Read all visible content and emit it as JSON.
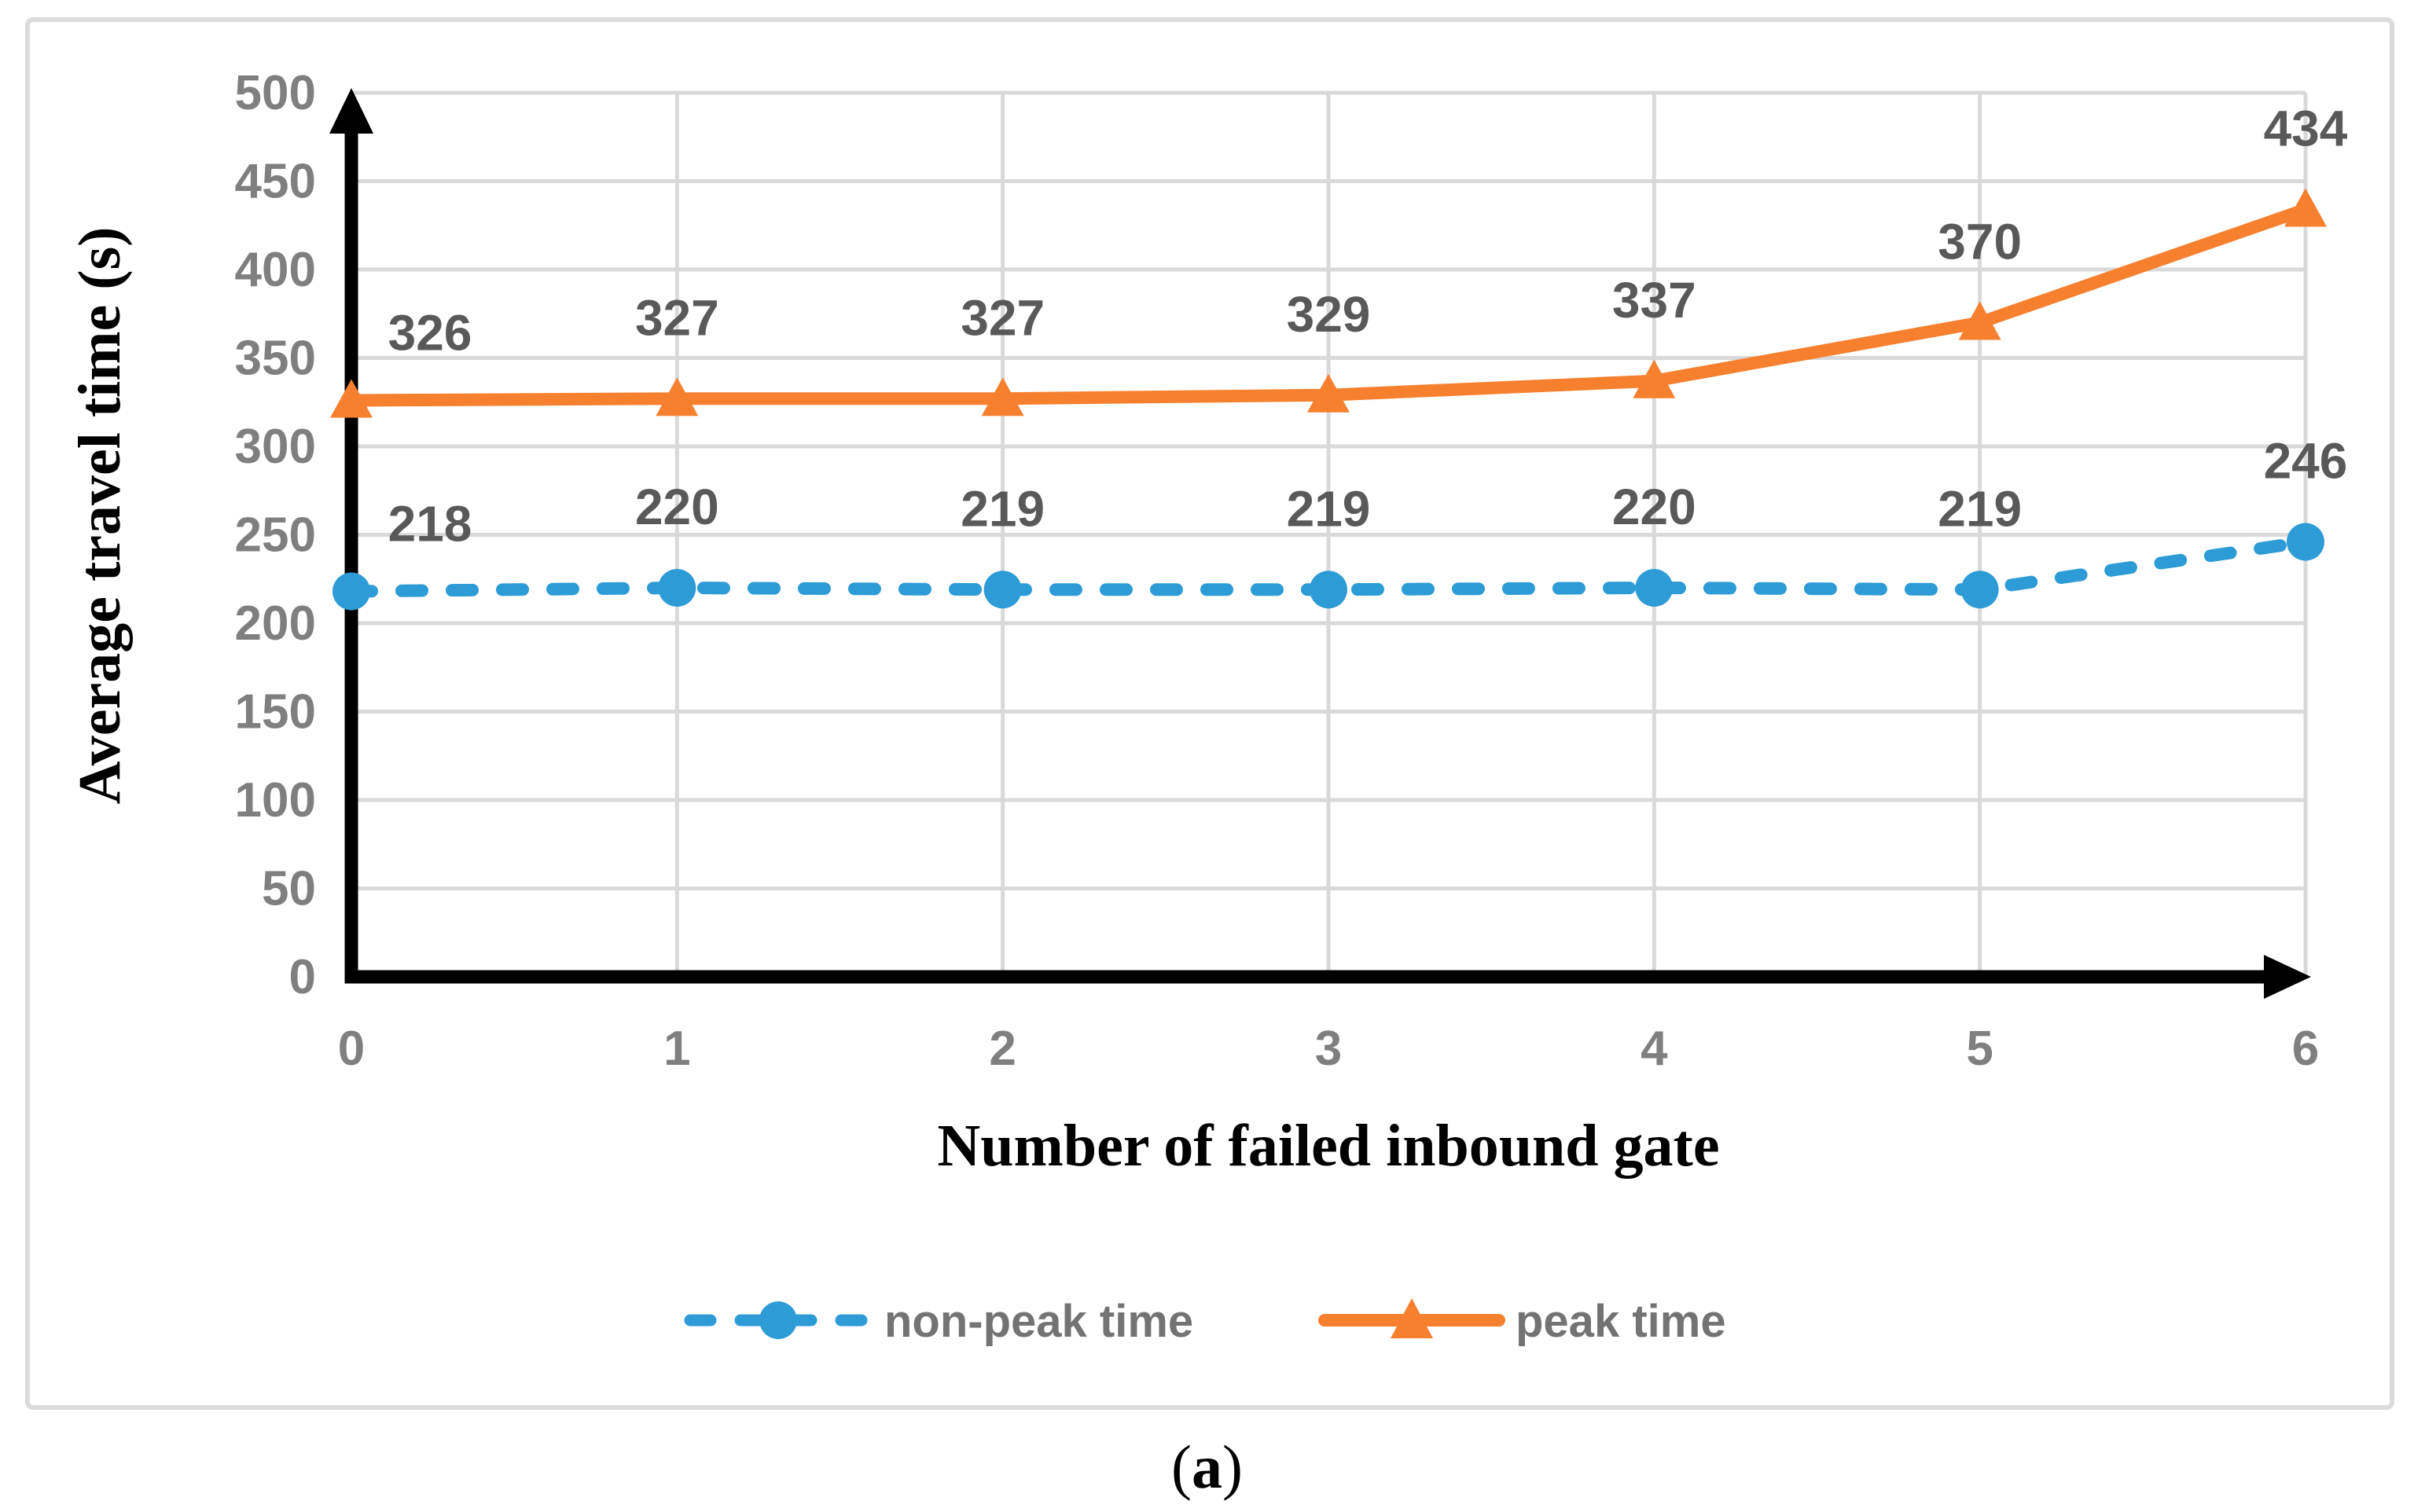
{
  "figure": {
    "caption": {
      "open": "(",
      "letter": "a",
      "close": ")"
    }
  },
  "chart_data": {
    "type": "line",
    "title": "",
    "xlabel": "Number of failed inbound gate",
    "ylabel": "Average travel time (s)",
    "x": [
      0,
      1,
      2,
      3,
      4,
      5,
      6
    ],
    "x_ticks": [
      "0",
      "1",
      "2",
      "3",
      "4",
      "5",
      "6"
    ],
    "y_ticks": [
      0,
      50,
      100,
      150,
      200,
      250,
      300,
      350,
      400,
      450,
      500
    ],
    "ylim": [
      0,
      500
    ],
    "grid": true,
    "legend_position": "bottom",
    "series": [
      {
        "name": "non-peak time",
        "values": [
          218,
          220,
          219,
          219,
          220,
          219,
          246
        ],
        "labels": [
          "218",
          "220",
          "219",
          "219",
          "220",
          "219",
          "246"
        ],
        "color": "#2D9BD6",
        "style": "dashed",
        "marker": "circle"
      },
      {
        "name": "peak time",
        "values": [
          326,
          327,
          327,
          329,
          337,
          370,
          434
        ],
        "labels": [
          "326",
          "327",
          "327",
          "329",
          "337",
          "370",
          "434"
        ],
        "color": "#F6802E",
        "style": "solid",
        "marker": "triangle"
      }
    ]
  },
  "colors": {
    "grid": "#d9d9d9",
    "axis": "#000000",
    "data_label": "#595959",
    "tick_label": "#7f7f7f",
    "legend_text": "#737373",
    "frame": "#dbdbdb"
  }
}
